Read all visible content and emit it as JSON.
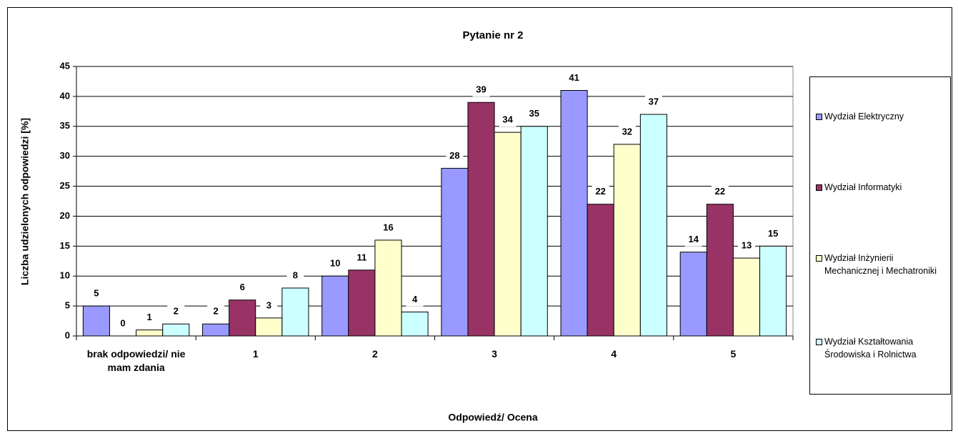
{
  "chart_data": {
    "type": "bar",
    "title": "Pytanie nr 2",
    "x_label": "Odpowiedź/ Ocena",
    "y_label": "Liczba udzielonych odpowiedzi [%]",
    "categories": [
      "brak odpowiedzi/ nie mam zdania",
      "1",
      "2",
      "3",
      "4",
      "5"
    ],
    "series": [
      {
        "name": "Wydział Elektryczny",
        "color": "#9999ff",
        "values": [
          5,
          2,
          10,
          28,
          41,
          14
        ]
      },
      {
        "name": "Wydział Informatyki",
        "color": "#993366",
        "values": [
          0,
          6,
          11,
          39,
          22,
          22
        ]
      },
      {
        "name": "Wydział Inżynierii Mechanicznej i Mechatroniki",
        "color": "#ffffcc",
        "values": [
          1,
          3,
          16,
          34,
          32,
          13
        ]
      },
      {
        "name": "Wydział Kształtowania Środowiska i Rolnictwa",
        "color": "#ccffff",
        "values": [
          2,
          8,
          4,
          35,
          37,
          15
        ]
      }
    ],
    "ylim": [
      0,
      45
    ],
    "yticks": [
      0,
      5,
      10,
      15,
      20,
      25,
      30,
      35,
      40,
      45
    ],
    "grid": true,
    "legend": "right"
  }
}
